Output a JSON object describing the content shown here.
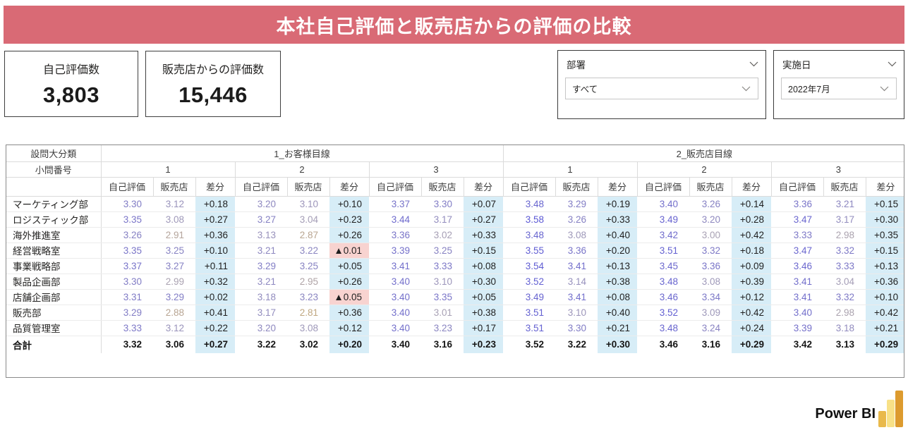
{
  "title": {
    "text": "本社自己評価と販売店からの評価の比較"
  },
  "kpi_cards": [
    {
      "label": "自己評価数",
      "value": "3,803"
    },
    {
      "label": "販売店からの評価数",
      "value": "15,446"
    }
  ],
  "slicers": [
    {
      "label": "部署",
      "value": "すべて"
    },
    {
      "label": "実施日",
      "value": "2022年7月"
    }
  ],
  "matrix": {
    "corner": {
      "row1": "設問大分類",
      "row2": "小問番号"
    },
    "groups": [
      "1_お客様目線",
      "2_販売店目線"
    ],
    "question_numbers": [
      "1",
      "2",
      "3"
    ],
    "measures": [
      "自己評価",
      "販売店",
      "差分"
    ],
    "rows": [
      {
        "label": "マーケティング部",
        "cells": [
          "3.30",
          "3.12",
          "+0.18",
          "3.20",
          "3.10",
          "+0.10",
          "3.37",
          "3.30",
          "+0.07",
          "3.48",
          "3.29",
          "+0.19",
          "3.40",
          "3.26",
          "+0.14",
          "3.36",
          "3.21",
          "+0.15"
        ]
      },
      {
        "label": "ロジスティック部",
        "cells": [
          "3.35",
          "3.08",
          "+0.27",
          "3.27",
          "3.04",
          "+0.23",
          "3.44",
          "3.17",
          "+0.27",
          "3.58",
          "3.26",
          "+0.33",
          "3.49",
          "3.20",
          "+0.28",
          "3.47",
          "3.17",
          "+0.30"
        ]
      },
      {
        "label": "海外推進室",
        "cells": [
          "3.26",
          "2.91",
          "+0.36",
          "3.13",
          "2.87",
          "+0.26",
          "3.36",
          "3.02",
          "+0.33",
          "3.48",
          "3.08",
          "+0.40",
          "3.42",
          "3.00",
          "+0.42",
          "3.33",
          "2.98",
          "+0.35"
        ]
      },
      {
        "label": "経営戦略室",
        "cells": [
          "3.35",
          "3.25",
          "+0.10",
          "3.21",
          "3.22",
          "▲0.01",
          "3.39",
          "3.25",
          "+0.15",
          "3.55",
          "3.36",
          "+0.20",
          "3.51",
          "3.32",
          "+0.18",
          "3.47",
          "3.32",
          "+0.15"
        ]
      },
      {
        "label": "事業戦略部",
        "cells": [
          "3.37",
          "3.27",
          "+0.11",
          "3.29",
          "3.25",
          "+0.05",
          "3.41",
          "3.33",
          "+0.08",
          "3.54",
          "3.41",
          "+0.13",
          "3.45",
          "3.36",
          "+0.09",
          "3.46",
          "3.33",
          "+0.13"
        ]
      },
      {
        "label": "製品企画部",
        "cells": [
          "3.30",
          "2.99",
          "+0.32",
          "3.21",
          "2.95",
          "+0.26",
          "3.40",
          "3.10",
          "+0.30",
          "3.52",
          "3.14",
          "+0.38",
          "3.48",
          "3.08",
          "+0.39",
          "3.41",
          "3.04",
          "+0.36"
        ]
      },
      {
        "label": "店舗企画部",
        "cells": [
          "3.31",
          "3.29",
          "+0.02",
          "3.18",
          "3.23",
          "▲0.05",
          "3.40",
          "3.35",
          "+0.05",
          "3.49",
          "3.41",
          "+0.08",
          "3.46",
          "3.34",
          "+0.12",
          "3.41",
          "3.32",
          "+0.10"
        ]
      },
      {
        "label": "販売部",
        "cells": [
          "3.29",
          "2.88",
          "+0.41",
          "3.17",
          "2.81",
          "+0.36",
          "3.40",
          "3.01",
          "+0.38",
          "3.51",
          "3.10",
          "+0.40",
          "3.52",
          "3.09",
          "+0.42",
          "3.40",
          "2.98",
          "+0.42"
        ]
      },
      {
        "label": "品質管理室",
        "cells": [
          "3.33",
          "3.12",
          "+0.22",
          "3.20",
          "3.08",
          "+0.12",
          "3.40",
          "3.23",
          "+0.17",
          "3.51",
          "3.30",
          "+0.21",
          "3.48",
          "3.24",
          "+0.24",
          "3.39",
          "3.18",
          "+0.21"
        ]
      },
      {
        "label": "合計",
        "is_total": true,
        "cells": [
          "3.32",
          "3.06",
          "+0.27",
          "3.22",
          "3.02",
          "+0.20",
          "3.40",
          "3.16",
          "+0.23",
          "3.52",
          "3.22",
          "+0.30",
          "3.46",
          "3.16",
          "+0.29",
          "3.42",
          "3.13",
          "+0.29"
        ]
      }
    ]
  },
  "footer": {
    "brand": "Power BI"
  },
  "colors": {
    "title_bg": "#D96A75",
    "diff_positive_bg": "#D7EDF7",
    "diff_negative_bg": "#F8D3D0",
    "value_scale_low": "#C4A878",
    "value_scale_mid": "#A9A2B4",
    "value_scale_high": "#5B58D5",
    "scale_low_anchor": 2.78,
    "scale_mid_anchor": 3.0,
    "scale_high_anchor": 3.58,
    "powerbi_bar_left": "#E9B94B",
    "powerbi_bar_middle": "#F8E187",
    "powerbi_bar_right": "#DD9B2E"
  }
}
